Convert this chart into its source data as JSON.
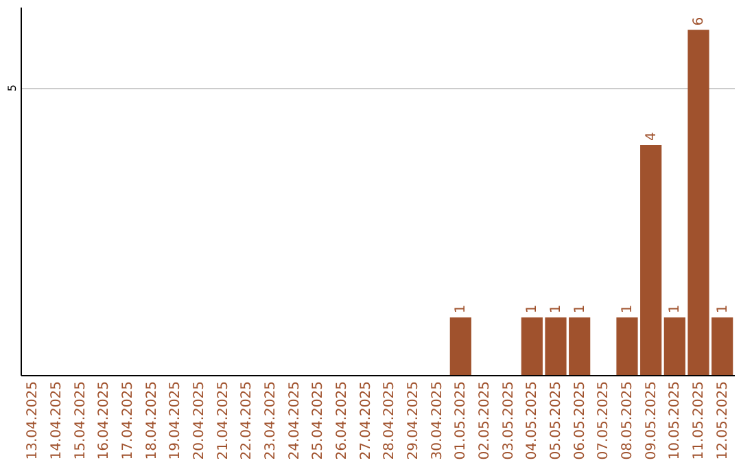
{
  "chart_data": {
    "type": "bar",
    "categories": [
      "13.04.2025",
      "14.04.2025",
      "15.04.2025",
      "16.04.2025",
      "17.04.2025",
      "18.04.2025",
      "19.04.2025",
      "20.04.2025",
      "21.04.2025",
      "22.04.2025",
      "23.04.2025",
      "24.04.2025",
      "25.04.2025",
      "26.04.2025",
      "27.04.2025",
      "28.04.2025",
      "29.04.2025",
      "30.04.2025",
      "01.05.2025",
      "02.05.2025",
      "03.05.2025",
      "04.05.2025",
      "05.05.2025",
      "06.05.2025",
      "07.05.2025",
      "08.05.2025",
      "09.05.2025",
      "10.05.2025",
      "11.05.2025",
      "12.05.2025"
    ],
    "values": [
      null,
      null,
      null,
      null,
      null,
      null,
      null,
      null,
      null,
      null,
      null,
      null,
      null,
      null,
      null,
      null,
      null,
      null,
      1,
      null,
      null,
      1,
      1,
      1,
      null,
      1,
      4,
      1,
      6,
      1
    ],
    "color": "#a0522d",
    "ylim": [
      0,
      6.4
    ],
    "yticks": [
      5
    ],
    "grid": "y",
    "data_labels": true
  }
}
